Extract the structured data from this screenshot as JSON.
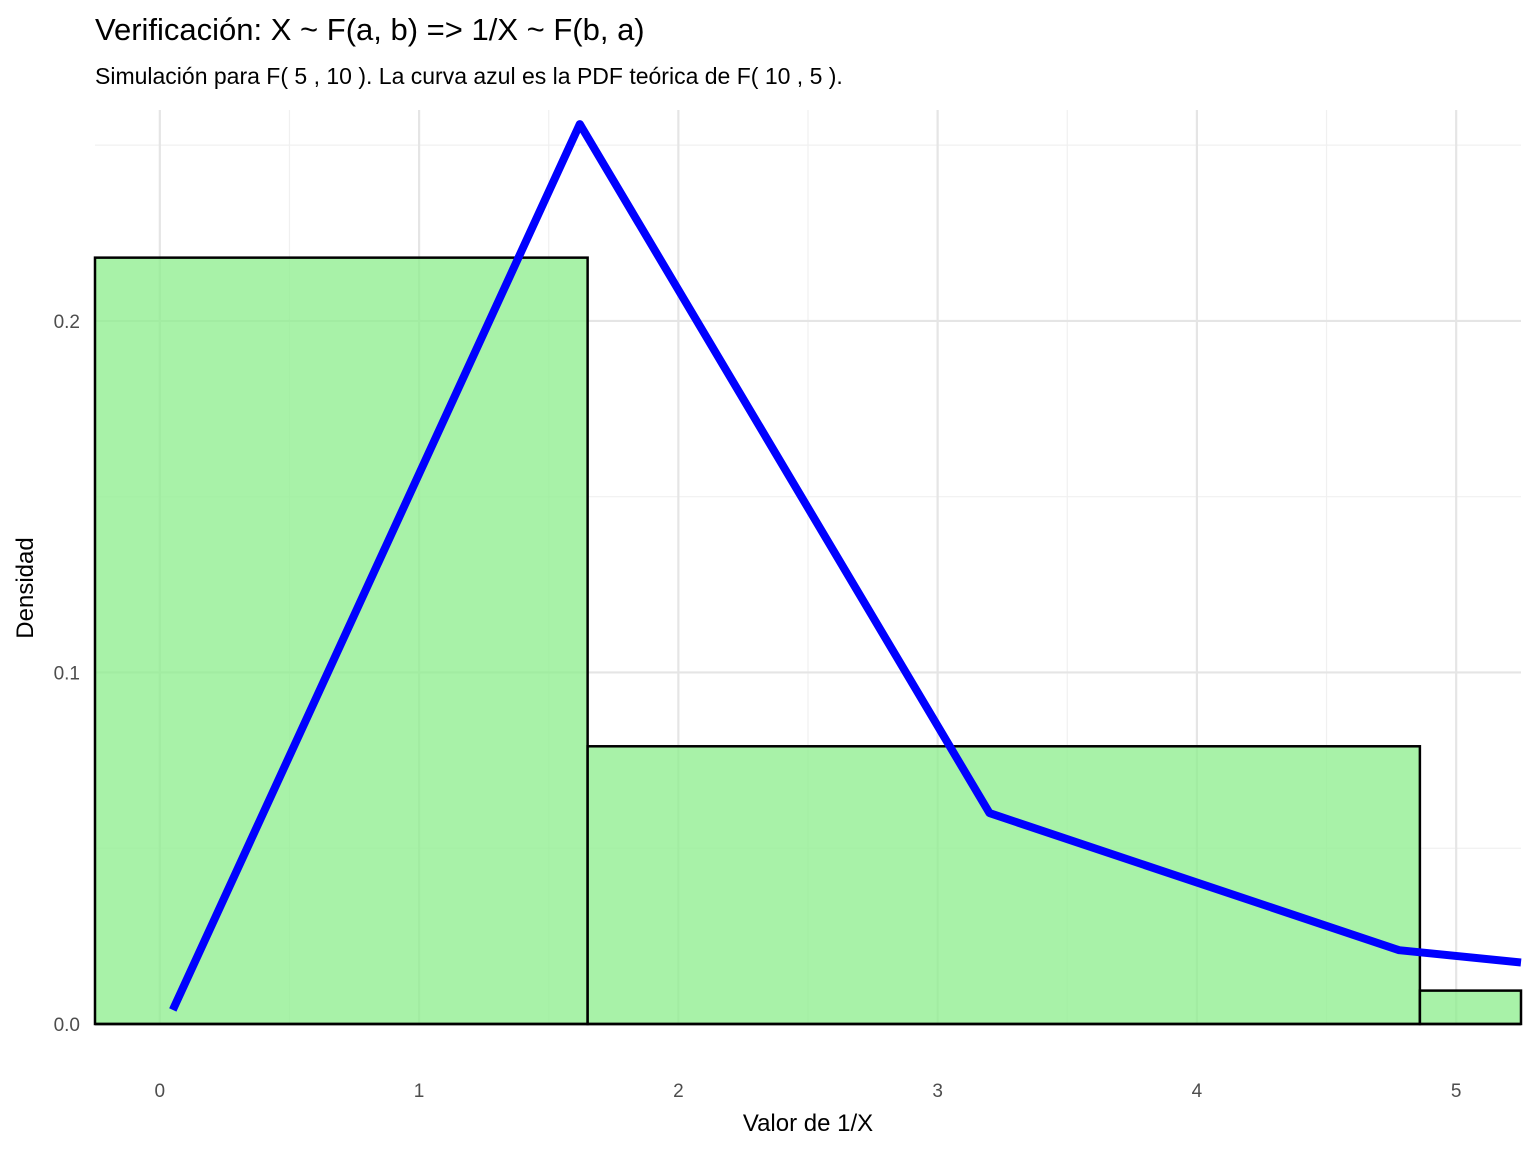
{
  "chart_data": {
    "type": "bar",
    "title": "Verificación: X ~ F(a, b) => 1/X ~ F(b, a)",
    "subtitle": "Simulación para F( 5 , 10 ). La curva azul es la PDF teórica de F( 10 , 5 ).",
    "xlabel": "Valor de 1/X",
    "ylabel": "Densidad",
    "xlim": [
      -0.25,
      5.25
    ],
    "ylim": [
      0,
      0.26
    ],
    "x_ticks": [
      0,
      1,
      2,
      3,
      4,
      5
    ],
    "x_tick_labels": [
      "0",
      "1",
      "2",
      "3",
      "4",
      "5"
    ],
    "y_ticks": [
      0.0,
      0.1,
      0.2
    ],
    "y_tick_labels": [
      "0.0",
      "0.1",
      "0.2"
    ],
    "grid": true,
    "histogram": {
      "fill_color": "#90ee90",
      "border_color": "#000000",
      "bins": [
        {
          "x0": -0.25,
          "x1": 1.65,
          "density": 0.218
        },
        {
          "x0": 1.65,
          "x1": 4.86,
          "density": 0.079
        },
        {
          "x0": 4.86,
          "x1": 5.25,
          "density": 0.0095
        }
      ]
    },
    "series": [
      {
        "type": "line",
        "color": "#0000ff",
        "x": [
          0.05,
          1.62,
          3.2,
          4.78,
          5.25
        ],
        "y": [
          0.004,
          0.256,
          0.06,
          0.021,
          0.0175
        ]
      }
    ]
  }
}
